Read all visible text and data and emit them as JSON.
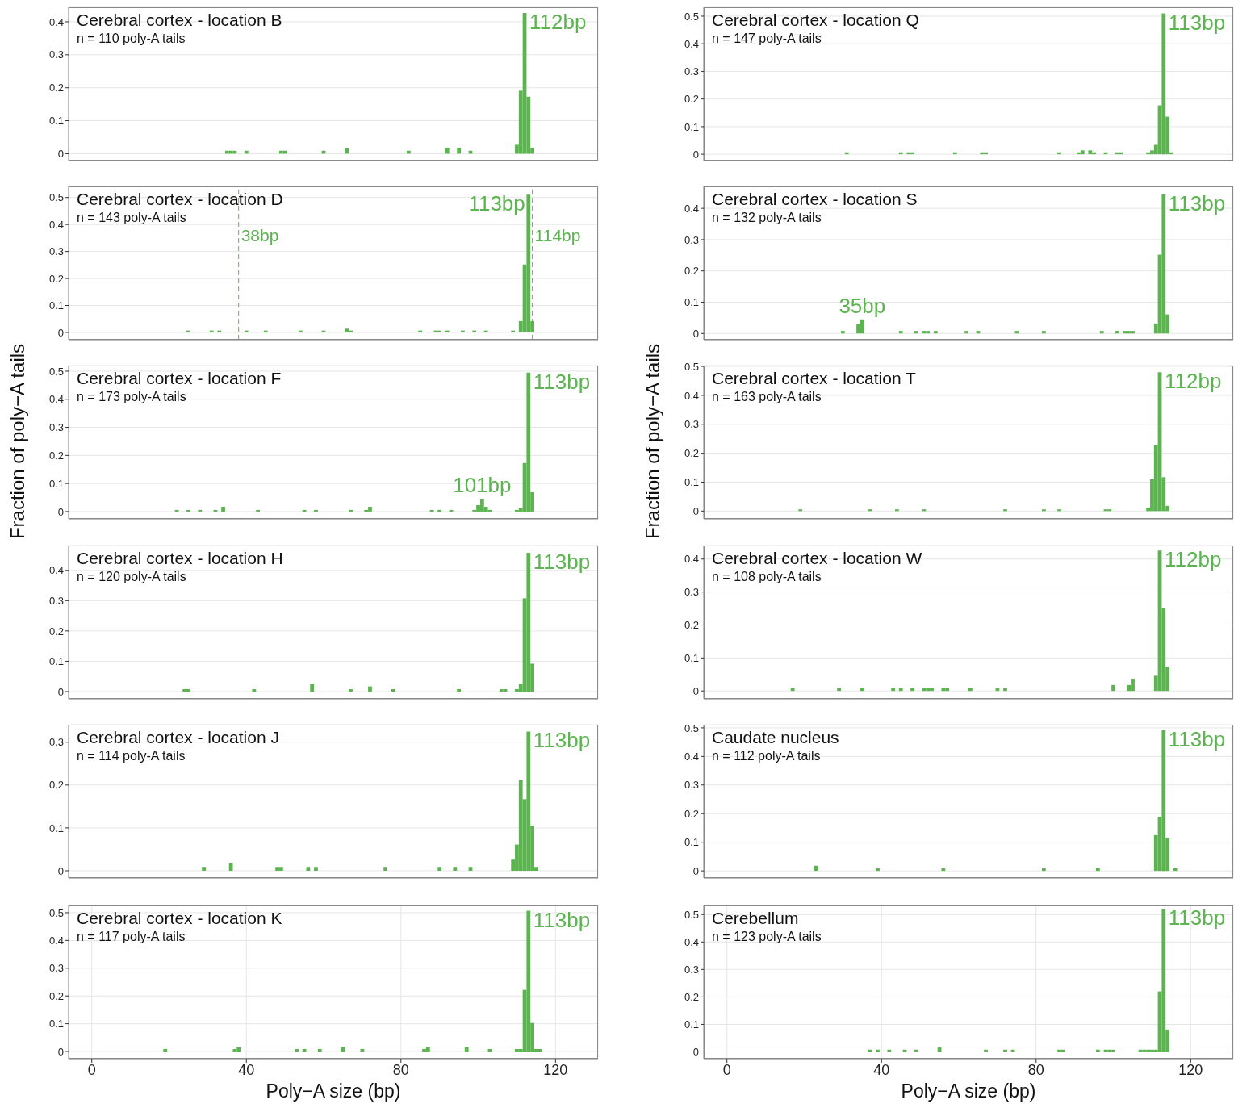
{
  "chart_data": [
    {
      "type": "histogram",
      "title": "Cerebral cortex - location B",
      "subtitle": "n = 110 poly-A tails",
      "color": "#5cb451",
      "grid": true,
      "tick_labels": "y",
      "xlim": [
        -6,
        131
      ],
      "xticks": [
        0,
        40,
        80,
        120
      ],
      "ylim": [
        -0.021,
        0.444
      ],
      "yticks": [
        0,
        0.1,
        0.2,
        0.3,
        0.4
      ],
      "bins": [
        34.5,
        35.5,
        36.5,
        37.5,
        39.5,
        40.5,
        48.5,
        49.5,
        50.5,
        59.5,
        60.5,
        65.5,
        66.5,
        81.5,
        82.5,
        91.5,
        92.5,
        94.5,
        95.5,
        97.5,
        98.5,
        109.5,
        110.5,
        111.5,
        112.5,
        113.5,
        114.5
      ],
      "values": [
        0.009,
        0.009,
        0.009,
        0,
        0.009,
        0,
        0.009,
        0.009,
        0,
        0.009,
        0,
        0.018,
        0,
        0.009,
        0,
        0.018,
        0,
        0.018,
        0,
        0.009,
        0,
        0.027,
        0.191,
        0.427,
        0.173,
        0.018
      ],
      "annotations": [
        {
          "text": "112bp",
          "x": 112,
          "y": 0.427
        }
      ]
    },
    {
      "type": "histogram",
      "title": "Cerebral cortex - location Q",
      "subtitle": "n = 147 poly-A tails",
      "color": "#5cb451",
      "grid": true,
      "tick_labels": "y",
      "xlim": [
        -6,
        131
      ],
      "xticks": [
        0,
        40,
        80,
        120
      ],
      "ylim": [
        -0.023,
        0.532
      ],
      "yticks": [
        0,
        0.1,
        0.2,
        0.3,
        0.4,
        0.5
      ],
      "bins": [
        30.5,
        31.5,
        44.5,
        45.5,
        46.5,
        47.5,
        48.5,
        58.5,
        59.5,
        65.5,
        66.5,
        67.5,
        85.5,
        86.5,
        90.5,
        91.5,
        92.5,
        93.5,
        94.5,
        95.5,
        97.5,
        98.5,
        100.5,
        101.5,
        102.5,
        108.5,
        109.5,
        110.5,
        111.5,
        112.5,
        113.5,
        114.5,
        115.5
      ],
      "values": [
        0.007,
        0,
        0.007,
        0,
        0.007,
        0.007,
        0,
        0.007,
        0,
        0.007,
        0.007,
        0,
        0.007,
        0,
        0.007,
        0.014,
        0,
        0.014,
        0.007,
        0,
        0.007,
        0,
        0.007,
        0.007,
        0,
        0.007,
        0.014,
        0.034,
        0.177,
        0.51,
        0.136,
        0.007
      ],
      "annotations": [
        {
          "text": "113bp",
          "x": 113,
          "y": 0.51
        }
      ]
    },
    {
      "type": "histogram",
      "title": "Cerebral cortex - location D",
      "subtitle": "n = 143 poly-A tails",
      "color": "#5cb451",
      "grid": true,
      "tick_labels": "y",
      "xlim": [
        -6,
        131
      ],
      "xticks": [
        0,
        40,
        80,
        120
      ],
      "ylim": [
        -0.027,
        0.541
      ],
      "yticks": [
        0,
        0.1,
        0.2,
        0.3,
        0.4,
        0.5
      ],
      "bins": [
        24.5,
        25.5,
        30.5,
        31.5,
        32.5,
        33.5,
        39.5,
        40.5,
        44.5,
        45.5,
        53.5,
        54.5,
        59.5,
        60.5,
        65.5,
        66.5,
        67.5,
        84.5,
        85.5,
        88.5,
        89.5,
        90.5,
        91.5,
        92.5,
        95.5,
        96.5,
        98.5,
        99.5,
        101.5,
        102.5,
        108.5,
        109.5,
        110.5,
        111.5,
        112.5,
        113.5,
        114.5
      ],
      "values": [
        0.007,
        0,
        0.007,
        0,
        0.007,
        0,
        0.007,
        0,
        0.007,
        0,
        0.007,
        0,
        0.007,
        0,
        0.014,
        0.007,
        0,
        0.007,
        0,
        0.007,
        0.007,
        0,
        0.007,
        0,
        0.007,
        0,
        0.007,
        0,
        0.007,
        0,
        0.007,
        0,
        0.042,
        0.252,
        0.51,
        0.042
      ],
      "ref_lines": [
        {
          "axis": "x",
          "value": 38,
          "label": "38bp",
          "color": "#5cb451",
          "line_style": "dashed"
        },
        {
          "axis": "x",
          "value": 114,
          "label": "114bp",
          "color": "#5cb451",
          "line_style": "dashed"
        }
      ],
      "annotations": [
        {
          "text": "113bp",
          "x": 113,
          "y": 0.51
        }
      ]
    },
    {
      "type": "histogram",
      "title": "Cerebral cortex - location S",
      "subtitle": "n = 132 poly-A tails",
      "color": "#5cb451",
      "grid": true,
      "tick_labels": "y",
      "xlim": [
        -6,
        131
      ],
      "xticks": [
        0,
        40,
        80,
        120
      ],
      "ylim": [
        -0.02,
        0.47
      ],
      "yticks": [
        0,
        0.1,
        0.2,
        0.3,
        0.4
      ],
      "bins": [
        29.5,
        30.5,
        33.5,
        34.5,
        35.5,
        44.5,
        45.5,
        48.5,
        49.5,
        50.5,
        51.5,
        52.5,
        53.5,
        54.5,
        61.5,
        62.5,
        64.5,
        65.5,
        74.5,
        75.5,
        81.5,
        82.5,
        96.5,
        97.5,
        100.5,
        101.5,
        102.5,
        103.5,
        104.5,
        105.5,
        110.5,
        111.5,
        112.5,
        113.5,
        114.5
      ],
      "values": [
        0.008,
        0,
        0.03,
        0.045,
        0,
        0.008,
        0,
        0.008,
        0,
        0.008,
        0.008,
        0,
        0.008,
        0,
        0.008,
        0,
        0.008,
        0,
        0.008,
        0,
        0.008,
        0,
        0.008,
        0,
        0.008,
        0,
        0.008,
        0.008,
        0.008,
        0,
        0.032,
        0.252,
        0.444,
        0.061
      ],
      "annotations": [
        {
          "text": "35bp",
          "x": 35,
          "y": 0.045
        },
        {
          "text": "113bp",
          "x": 113,
          "y": 0.444
        }
      ]
    },
    {
      "type": "histogram",
      "title": "Cerebral cortex - location F",
      "subtitle": "n = 173 poly-A tails",
      "ylabel": "Fraction of poly−A tails",
      "color": "#5cb451",
      "grid": true,
      "tick_labels": "y",
      "xlim": [
        -6,
        131
      ],
      "xticks": [
        0,
        40,
        80,
        120
      ],
      "ylim": [
        -0.026,
        0.52
      ],
      "yticks": [
        0,
        0.1,
        0.2,
        0.3,
        0.4,
        0.5
      ],
      "bins": [
        21.5,
        22.5,
        24.5,
        25.5,
        27.5,
        28.5,
        31.5,
        32.5,
        33.5,
        34.5,
        42.5,
        43.5,
        54.5,
        55.5,
        57.5,
        58.5,
        66.5,
        67.5,
        70.5,
        71.5,
        72.5,
        87.5,
        88.5,
        89.5,
        90.5,
        92.5,
        93.5,
        98.5,
        99.5,
        100.5,
        101.5,
        102.5,
        103.5,
        109.5,
        110.5,
        111.5,
        112.5,
        113.5,
        114.5
      ],
      "values": [
        0.006,
        0,
        0.006,
        0,
        0.006,
        0,
        0.006,
        0,
        0.017,
        0,
        0.006,
        0,
        0.006,
        0,
        0.006,
        0,
        0.006,
        0,
        0.006,
        0.017,
        0,
        0.006,
        0,
        0.006,
        0,
        0.006,
        0,
        0.006,
        0.023,
        0.046,
        0.017,
        0.006,
        0,
        0.006,
        0.012,
        0.173,
        0.495,
        0.069
      ],
      "annotations": [
        {
          "text": "113bp",
          "x": 113,
          "y": 0.495
        },
        {
          "text": "101bp",
          "x": 101,
          "y": 0.046
        }
      ]
    },
    {
      "type": "histogram",
      "title": "Cerebral cortex - location T",
      "subtitle": "n = 163 poly-A tails",
      "ylabel": "Fraction of poly−A tails",
      "color": "#5cb451",
      "grid": true,
      "tick_labels": "y",
      "xlim": [
        -6,
        131
      ],
      "xticks": [
        0,
        40,
        80,
        120
      ],
      "ylim": [
        -0.027,
        0.503
      ],
      "yticks": [
        0,
        0.1,
        0.2,
        0.3,
        0.4,
        0.5
      ],
      "bins": [
        18.5,
        19.5,
        36.5,
        37.5,
        43.5,
        44.5,
        50.5,
        51.5,
        71.5,
        72.5,
        81.5,
        82.5,
        85.5,
        86.5,
        97.5,
        98.5,
        99.5,
        108.5,
        109.5,
        110.5,
        111.5,
        112.5,
        113.5,
        114.5
      ],
      "values": [
        0.006,
        0,
        0.006,
        0,
        0.006,
        0,
        0.006,
        0,
        0.006,
        0,
        0.006,
        0,
        0.006,
        0,
        0.006,
        0.006,
        0,
        0.012,
        0.11,
        0.227,
        0.48,
        0.117,
        0.018
      ],
      "annotations": [
        {
          "text": "112bp",
          "x": 112,
          "y": 0.48
        }
      ]
    },
    {
      "type": "histogram",
      "title": "Cerebral cortex - location H",
      "subtitle": "n = 120 poly-A tails",
      "color": "#5cb451",
      "grid": true,
      "tick_labels": "y",
      "xlim": [
        -6,
        131
      ],
      "xticks": [
        0,
        40,
        80,
        120
      ],
      "ylim": [
        -0.024,
        0.482
      ],
      "yticks": [
        0,
        0.1,
        0.2,
        0.3,
        0.4
      ],
      "bins": [
        23.5,
        24.5,
        25.5,
        41.5,
        42.5,
        56.5,
        57.5,
        66.5,
        67.5,
        71.5,
        72.5,
        77.5,
        78.5,
        94.5,
        95.5,
        105.5,
        106.5,
        107.5,
        109.5,
        110.5,
        111.5,
        112.5,
        113.5,
        114.5
      ],
      "values": [
        0.008,
        0.008,
        0,
        0.008,
        0,
        0.025,
        0,
        0.008,
        0,
        0.017,
        0,
        0.008,
        0,
        0.008,
        0,
        0.008,
        0.008,
        0,
        0.008,
        0.025,
        0.308,
        0.458,
        0.092
      ],
      "annotations": [
        {
          "text": "113bp",
          "x": 113,
          "y": 0.458
        }
      ]
    },
    {
      "type": "histogram",
      "title": "Cerebral cortex - location W",
      "subtitle": "n = 108 poly-A tails",
      "color": "#5cb451",
      "grid": true,
      "tick_labels": "y",
      "xlim": [
        -6,
        131
      ],
      "xticks": [
        0,
        40,
        80,
        120
      ],
      "ylim": [
        -0.024,
        0.441
      ],
      "yticks": [
        0,
        0.1,
        0.2,
        0.3,
        0.4
      ],
      "bins": [
        16.5,
        17.5,
        28.5,
        29.5,
        34.5,
        35.5,
        42.5,
        43.5,
        44.5,
        45.5,
        47.5,
        48.5,
        50.5,
        51.5,
        52.5,
        53.5,
        55.5,
        56.5,
        57.5,
        62.5,
        63.5,
        69.5,
        70.5,
        71.5,
        72.5,
        99.5,
        100.5,
        103.5,
        104.5,
        105.5,
        110.5,
        111.5,
        112.5,
        113.5,
        114.5
      ],
      "values": [
        0.009,
        0,
        0.009,
        0,
        0.009,
        0,
        0.009,
        0,
        0.009,
        0,
        0.009,
        0,
        0.009,
        0.009,
        0.009,
        0,
        0.009,
        0.009,
        0,
        0.009,
        0,
        0.009,
        0,
        0.009,
        0,
        0.018,
        0,
        0.018,
        0.037,
        0,
        0.046,
        0.426,
        0.25,
        0.074
      ],
      "annotations": [
        {
          "text": "112bp",
          "x": 112,
          "y": 0.426
        }
      ]
    },
    {
      "type": "histogram",
      "title": "Cerebral cortex - location J",
      "subtitle": "n = 114 poly-A tails",
      "color": "#5cb451",
      "grid": true,
      "tick_labels": "y",
      "xlim": [
        -6,
        131
      ],
      "xticks": [
        0,
        40,
        80,
        120
      ],
      "ylim": [
        -0.017,
        0.341
      ],
      "yticks": [
        0,
        0.1,
        0.2,
        0.3
      ],
      "bins": [
        28.5,
        29.5,
        35.5,
        36.5,
        47.5,
        48.5,
        49.5,
        55.5,
        56.5,
        57.5,
        58.5,
        75.5,
        76.5,
        89.5,
        90.5,
        93.5,
        94.5,
        97.5,
        98.5,
        108.5,
        109.5,
        110.5,
        111.5,
        112.5,
        113.5,
        114.5,
        115.5
      ],
      "values": [
        0.009,
        0,
        0.018,
        0,
        0.009,
        0.009,
        0,
        0.009,
        0,
        0.009,
        0,
        0.009,
        0,
        0.009,
        0,
        0.009,
        0,
        0.009,
        0,
        0.026,
        0.061,
        0.211,
        0.167,
        0.325,
        0.105,
        0.009
      ],
      "annotations": [
        {
          "text": "113bp",
          "x": 113,
          "y": 0.325
        }
      ]
    },
    {
      "type": "histogram",
      "title": "Caudate nucleus",
      "subtitle": "n = 112 poly-A tails",
      "color": "#5cb451",
      "grid": true,
      "tick_labels": "y",
      "xlim": [
        -6,
        131
      ],
      "xticks": [
        0,
        40,
        80,
        120
      ],
      "ylim": [
        -0.025,
        0.511
      ],
      "yticks": [
        0,
        0.1,
        0.2,
        0.3,
        0.4,
        0.5
      ],
      "bins": [
        22.5,
        23.5,
        38.5,
        39.5,
        55.5,
        56.5,
        81.5,
        82.5,
        95.5,
        96.5,
        110.5,
        111.5,
        112.5,
        113.5,
        114.5,
        115.5,
        116.5
      ],
      "values": [
        0.018,
        0,
        0.009,
        0,
        0.009,
        0,
        0.009,
        0,
        0.009,
        0,
        0.125,
        0.188,
        0.491,
        0.116,
        0,
        0.009
      ],
      "annotations": [
        {
          "text": "113bp",
          "x": 113,
          "y": 0.491
        }
      ]
    },
    {
      "type": "histogram",
      "title": "Cerebral cortex - location K",
      "subtitle": "n = 117 poly-A tails",
      "xlabel": "Poly−A size (bp)",
      "color": "#5cb451",
      "grid": true,
      "xlim": [
        -6,
        131
      ],
      "xticks": [
        0,
        40,
        80,
        120
      ],
      "ylim": [
        -0.026,
        0.526
      ],
      "yticks": [
        0,
        0.1,
        0.2,
        0.3,
        0.4,
        0.5
      ],
      "bins": [
        18.5,
        19.5,
        36.5,
        37.5,
        38.5,
        52.5,
        53.5,
        54.5,
        55.5,
        58.5,
        59.5,
        64.5,
        65.5,
        69.5,
        70.5,
        85.5,
        86.5,
        87.5,
        96.5,
        97.5,
        102.5,
        103.5,
        109.5,
        110.5,
        111.5,
        112.5,
        113.5,
        114.5,
        115.5,
        116.5
      ],
      "values": [
        0.009,
        0,
        0.009,
        0.017,
        0,
        0.009,
        0,
        0.009,
        0,
        0.009,
        0,
        0.017,
        0,
        0.009,
        0,
        0.009,
        0.017,
        0,
        0.017,
        0,
        0.009,
        0,
        0.009,
        0.009,
        0.222,
        0.507,
        0.103,
        0.009,
        0.009
      ],
      "annotations": [
        {
          "text": "113bp",
          "x": 113,
          "y": 0.507
        }
      ]
    },
    {
      "type": "histogram",
      "title": "Cerebellum",
      "subtitle": "n = 123 poly-A tails",
      "xlabel": "Poly−A size (bp)",
      "color": "#5cb451",
      "grid": true,
      "xlim": [
        -6,
        131
      ],
      "xticks": [
        0,
        40,
        80,
        120
      ],
      "ylim": [
        -0.025,
        0.533
      ],
      "yticks": [
        0,
        0.1,
        0.2,
        0.3,
        0.4,
        0.5
      ],
      "bins": [
        36.5,
        37.5,
        38.5,
        39.5,
        41.5,
        42.5,
        45.5,
        46.5,
        48.5,
        49.5,
        54.5,
        55.5,
        66.5,
        67.5,
        71.5,
        72.5,
        73.5,
        74.5,
        85.5,
        86.5,
        87.5,
        95.5,
        96.5,
        97.5,
        98.5,
        99.5,
        100.5,
        106.5,
        107.5,
        108.5,
        109.5,
        110.5,
        111.5,
        112.5,
        113.5,
        114.5
      ],
      "values": [
        0.008,
        0,
        0.008,
        0,
        0.008,
        0,
        0.008,
        0,
        0.008,
        0,
        0.016,
        0,
        0.008,
        0,
        0.008,
        0,
        0.008,
        0,
        0.008,
        0.008,
        0,
        0.008,
        0,
        0.008,
        0.008,
        0.008,
        0,
        0.008,
        0.008,
        0.008,
        0.008,
        0.008,
        0.22,
        0.52,
        0.081
      ],
      "annotations": [
        {
          "text": "113bp",
          "x": 113,
          "y": 0.52
        }
      ]
    }
  ]
}
